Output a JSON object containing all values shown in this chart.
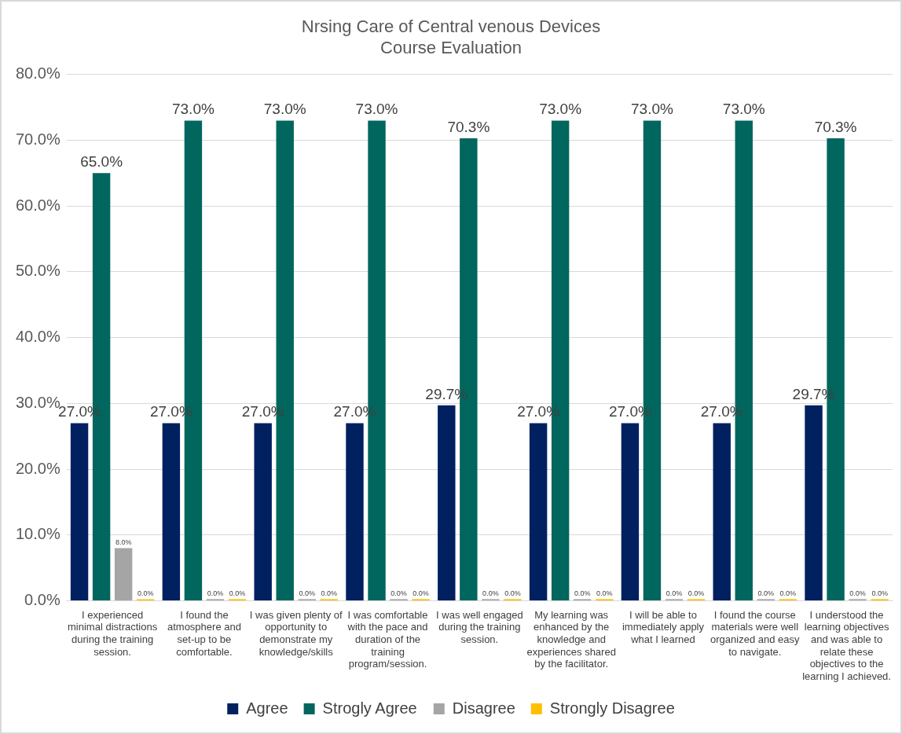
{
  "chart_data": {
    "type": "bar",
    "title": "Nrsing Care of Central venous Devices\nCourse Evaluation",
    "categories": [
      "I experienced minimal distractions during the training session.",
      "I found the atmosphere and set-up to be comfortable.",
      "I was given plenty of opportunity to demonstrate my knowledge/skills",
      "I was comfortable with the pace and duration of the training program/session.",
      "I was well engaged during the training session.",
      "My learning was enhanced by the knowledge and experiences shared by the facilitator.",
      "I will be able to immediately apply what I learned",
      "I found the course materials were well organized and easy to navigate.",
      "I understood the learning objectives and was able to relate these objectives to the learning I achieved."
    ],
    "series": [
      {
        "name": "Agree",
        "color": "#002060",
        "values": [
          27,
          27,
          27,
          27,
          29.7,
          27,
          27,
          27,
          29.7
        ],
        "value_labels": [
          "27.0%",
          "27.0%",
          "27.0%",
          "27.0%",
          "29.7%",
          "27.0%",
          "27.0%",
          "27.0%",
          "29.7%"
        ]
      },
      {
        "name": "Strogly Agree",
        "color": "#00665e",
        "values": [
          65,
          73,
          73,
          73,
          70.3,
          73,
          73,
          73,
          70.3
        ],
        "value_labels": [
          "65.0%",
          "73.0%",
          "73.0%",
          "73.0%",
          "70.3%",
          "73.0%",
          "73.0%",
          "73.0%",
          "70.3%"
        ]
      },
      {
        "name": "Disagree",
        "color": "#a5a5a5",
        "values": [
          8,
          0,
          0,
          0,
          0,
          0,
          0,
          0,
          0
        ],
        "value_labels": [
          "8.0%",
          "0.0%",
          "0.0%",
          "0.0%",
          "0.0%",
          "0.0%",
          "0.0%",
          "0.0%",
          "0.0%"
        ]
      },
      {
        "name": "Strongly Disagree",
        "color": "#ffc000",
        "values": [
          0,
          0,
          0,
          0,
          0,
          0,
          0,
          0,
          0
        ],
        "value_labels": [
          "0.0%",
          "0.0%",
          "0.0%",
          "0.0%",
          "0.0%",
          "0.0%",
          "0.0%",
          "0.0%",
          "0.0%"
        ]
      }
    ],
    "ylim": [
      0,
      80
    ],
    "yticks": [
      {
        "value": 0,
        "label": "0.0%"
      },
      {
        "value": 10,
        "label": "10.0%"
      },
      {
        "value": 20,
        "label": "20.0%"
      },
      {
        "value": 30,
        "label": "30.0%"
      },
      {
        "value": 40,
        "label": "40.0%"
      },
      {
        "value": 50,
        "label": "50.0%"
      },
      {
        "value": 60,
        "label": "60.0%"
      },
      {
        "value": 70,
        "label": "70.0%"
      },
      {
        "value": 80,
        "label": "80.0%"
      }
    ],
    "grid": "y",
    "legend": "bottom"
  }
}
